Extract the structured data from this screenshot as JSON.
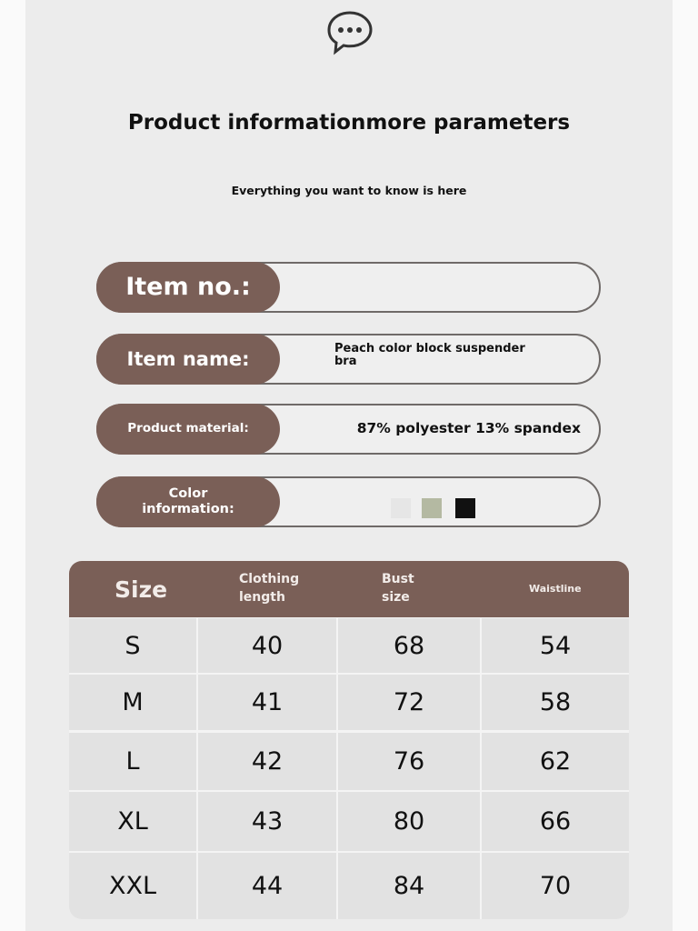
{
  "header": {
    "icon": "chat-bubble-icon",
    "title": "Product informationmore parameters",
    "subtitle": "Everything you want to know is here"
  },
  "info": [
    {
      "label": "Item no.:",
      "value": ""
    },
    {
      "label": "Item name:",
      "value": "Peach color block suspender bra"
    },
    {
      "label": "Product material:",
      "value": "87% polyester 13% spandex"
    },
    {
      "label": "Color information:",
      "colors": [
        "#e6e6e6",
        "#b4b9a2",
        "#111111"
      ]
    }
  ],
  "colors": {
    "accent": "#7a5f57",
    "panel": "#ececec"
  },
  "size_table": {
    "headers": [
      "Size",
      "Clothing length",
      "Bust size",
      "Waistline"
    ],
    "rows": [
      [
        "S",
        "40",
        "68",
        "54"
      ],
      [
        "M",
        "41",
        "72",
        "58"
      ],
      [
        "L",
        "42",
        "76",
        "62"
      ],
      [
        "XL",
        "43",
        "80",
        "66"
      ],
      [
        "XXL",
        "44",
        "84",
        "70"
      ]
    ]
  }
}
